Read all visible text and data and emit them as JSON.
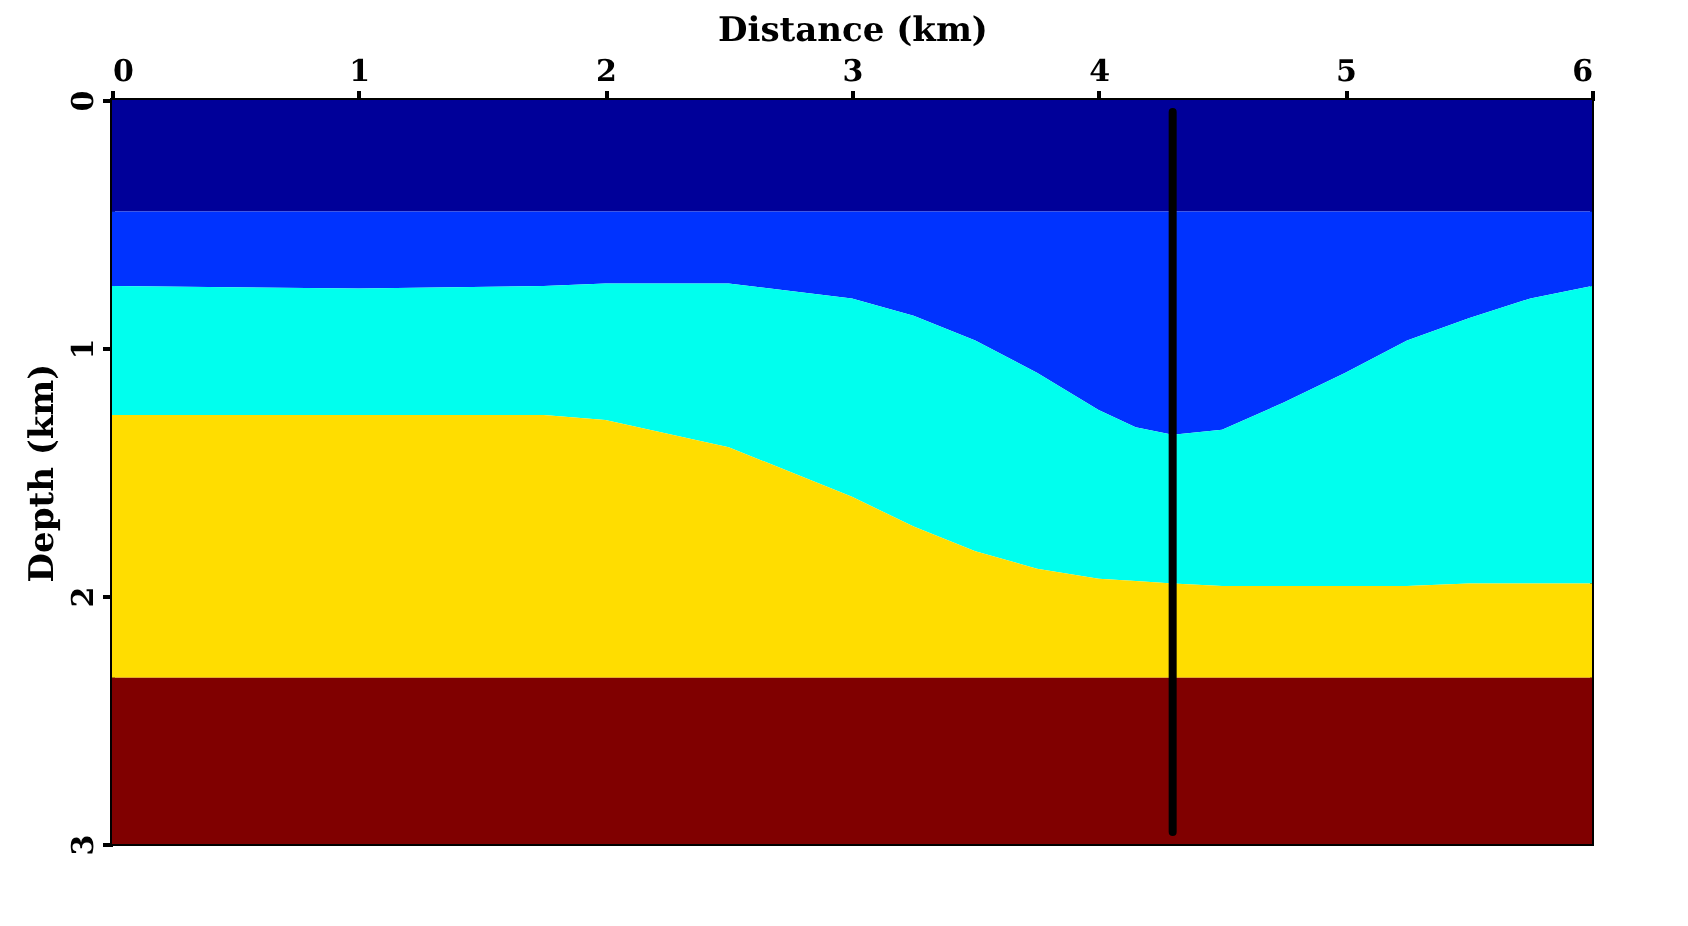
{
  "chart_data": {
    "type": "area",
    "stacked": true,
    "xlabel": "Distance (km)",
    "ylabel": "Depth (km)",
    "xlim": [
      0,
      6
    ],
    "xticks": [
      0,
      1,
      2,
      3,
      4,
      5,
      6
    ],
    "ylim": [
      3,
      0
    ],
    "yticks": [
      0,
      1,
      2,
      3
    ],
    "grid": false,
    "x": [
      0,
      1,
      1.75,
      2,
      2.5,
      3,
      3.25,
      3.5,
      3.75,
      4,
      4.15,
      4.3,
      4.5,
      4.75,
      5,
      5.25,
      5.5,
      5.75,
      6
    ],
    "series": [
      {
        "color": "#000099",
        "values": [
          0.45,
          0.45,
          0.45,
          0.45,
          0.45,
          0.45,
          0.45,
          0.45,
          0.45,
          0.45,
          0.45,
          0.45,
          0.45,
          0.45,
          0.45,
          0.45,
          0.45,
          0.45,
          0.45
        ]
      },
      {
        "color": "#0033ff",
        "values": [
          0.3,
          0.31,
          0.3,
          0.29,
          0.29,
          0.35,
          0.42,
          0.52,
          0.65,
          0.8,
          0.87,
          0.9,
          0.88,
          0.77,
          0.65,
          0.52,
          0.43,
          0.35,
          0.3
        ]
      },
      {
        "color": "#00ffee",
        "values": [
          0.52,
          0.51,
          0.52,
          0.55,
          0.66,
          0.8,
          0.85,
          0.85,
          0.79,
          0.68,
          0.62,
          0.6,
          0.63,
          0.74,
          0.86,
          0.99,
          1.07,
          1.15,
          1.2
        ]
      },
      {
        "color": "#ffdd00",
        "values": [
          1.06,
          1.06,
          1.06,
          1.04,
          0.93,
          0.73,
          0.61,
          0.51,
          0.44,
          0.4,
          0.39,
          0.38,
          0.37,
          0.37,
          0.37,
          0.37,
          0.38,
          0.38,
          0.38
        ]
      },
      {
        "color": "#800000",
        "values": [
          0.67,
          0.67,
          0.67,
          0.67,
          0.67,
          0.67,
          0.67,
          0.67,
          0.67,
          0.67,
          0.67,
          0.67,
          0.67,
          0.67,
          0.67,
          0.67,
          0.67,
          0.67,
          0.67
        ]
      }
    ],
    "ref_lines": [
      {
        "axis": "x",
        "value": 4.3,
        "color": "#000000"
      }
    ]
  }
}
